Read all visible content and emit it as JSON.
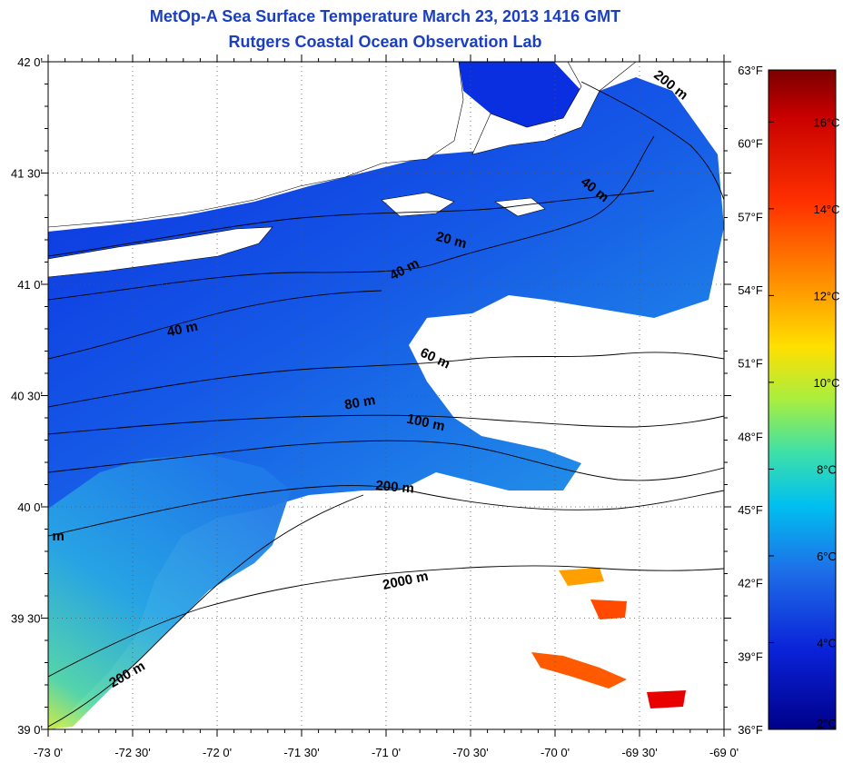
{
  "title": {
    "line1": "MetOp-A Sea Surface Temperature March 23, 2013 1416 GMT",
    "line2": "Rutgers Coastal Ocean Observation Lab"
  },
  "map": {
    "lat_range": [
      39.0,
      42.0
    ],
    "lon_range": [
      -73.0,
      -69.0
    ],
    "lat_labels": [
      {
        "lat": 42.0,
        "label": "42 0'"
      },
      {
        "lat": 41.5,
        "label": "41 30'"
      },
      {
        "lat": 41.0,
        "label": "41 0'"
      },
      {
        "lat": 40.5,
        "label": "40 30'"
      },
      {
        "lat": 40.0,
        "label": "40 0'"
      },
      {
        "lat": 39.5,
        "label": "39 30'"
      },
      {
        "lat": 39.0,
        "label": "39 0'"
      }
    ],
    "lon_labels": [
      {
        "lon": -73.0,
        "label": "-73 0'"
      },
      {
        "lon": -72.5,
        "label": "-72 30'"
      },
      {
        "lon": -72.0,
        "label": "-72 0'"
      },
      {
        "lon": -71.5,
        "label": "-71 30'"
      },
      {
        "lon": -71.0,
        "label": "-71 0'"
      },
      {
        "lon": -70.5,
        "label": "-70 30'"
      },
      {
        "lon": -70.0,
        "label": "-70 0'"
      },
      {
        "lon": -69.5,
        "label": "-69 30'"
      },
      {
        "lon": -69.0,
        "label": "-69 0'"
      }
    ],
    "fahrenheit_labels": [
      "63°F",
      "60°F",
      "57°F",
      "54°F",
      "51°F",
      "48°F",
      "45°F",
      "42°F",
      "39°F",
      "36°F"
    ],
    "contour_labels": [
      {
        "text": "200 m",
        "lon": -69.33,
        "lat": 41.88,
        "angle": 38
      },
      {
        "text": "40 m",
        "lon": -69.78,
        "lat": 41.41,
        "angle": 38
      },
      {
        "text": "20 m",
        "lon": -70.62,
        "lat": 41.18,
        "angle": 15
      },
      {
        "text": "40 m",
        "lon": -70.88,
        "lat": 41.05,
        "angle": -28
      },
      {
        "text": "40 m",
        "lon": -72.2,
        "lat": 40.78,
        "angle": -12
      },
      {
        "text": "60 m",
        "lon": -70.72,
        "lat": 40.65,
        "angle": 25
      },
      {
        "text": "80 m",
        "lon": -71.15,
        "lat": 40.45,
        "angle": -10
      },
      {
        "text": "100 m",
        "lon": -70.77,
        "lat": 40.36,
        "angle": 12
      },
      {
        "text": "200 m",
        "lon": -70.95,
        "lat": 40.07,
        "angle": 5
      },
      {
        "text": "2000 m",
        "lon": -70.88,
        "lat": 39.65,
        "angle": -12
      },
      {
        "text": "200 m",
        "lon": -72.52,
        "lat": 39.23,
        "angle": -30
      },
      {
        "text": "m",
        "lon": -72.94,
        "lat": 39.85,
        "angle": 0
      }
    ]
  },
  "colorbar": {
    "celsius_labels": [
      "16°C",
      "14°C",
      "12°C",
      "10°C",
      "8°C",
      "6°C",
      "4°C",
      "2°C"
    ],
    "celsius_range": [
      2,
      17.2
    ],
    "fahrenheit_range": [
      36,
      63
    ],
    "colors": [
      "#8b0000",
      "#e00000",
      "#ff4a00",
      "#ff9a00",
      "#ffe000",
      "#b8f040",
      "#40e0a0",
      "#00c8e8",
      "#1f7fe8",
      "#0a28d8",
      "#000090"
    ]
  }
}
